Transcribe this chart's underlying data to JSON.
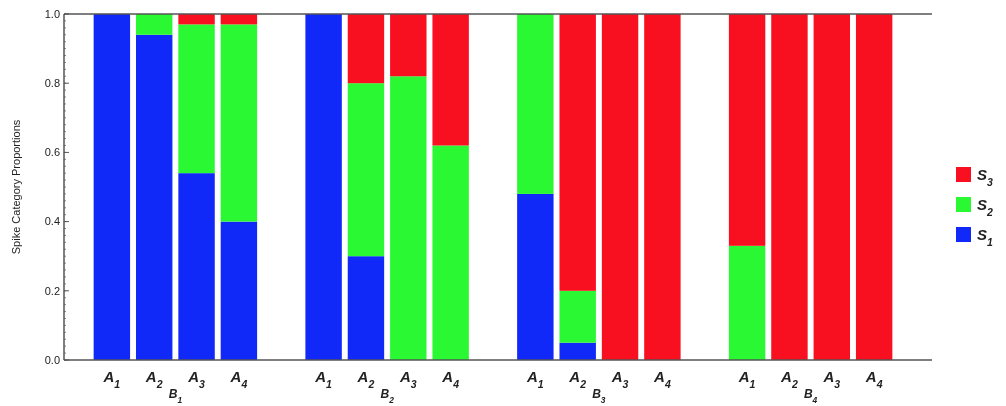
{
  "chart_data": {
    "type": "bar",
    "stacked": true,
    "ylabel": "Spike Category Proportions",
    "categories": [
      "A$_{1}$",
      "A$_{2}$",
      "A$_{3}$",
      "A$_{4}$",
      null,
      "A$_{1}$",
      "A$_{2}$",
      "A$_{3}$",
      "A$_{4}$",
      null,
      "A$_{1}$",
      "A$_{2}$",
      "A$_{3}$",
      "A$_{4}$",
      null,
      "A$_{1}$",
      "A$_{2}$",
      "A$_{3}$",
      "A$_{4}$"
    ],
    "series": [
      {
        "name": "S$_{1}$",
        "color": "#1028f8",
        "values": [
          1,
          0.94,
          0.54,
          0.4,
          null,
          1,
          0.3,
          0,
          0,
          null,
          0.48,
          0.05,
          0,
          0,
          null,
          0,
          0,
          0,
          0
        ]
      },
      {
        "name": "S$_{2}$",
        "color": "#2af832",
        "values": [
          0,
          0.06,
          0.43,
          0.57,
          null,
          0,
          0.5,
          0.82,
          0.62,
          null,
          0.52,
          0.15,
          0,
          0,
          null,
          0.33,
          0,
          0,
          0
        ]
      },
      {
        "name": "S$_{3}$",
        "color": "#f81020",
        "values": [
          0,
          0,
          0.03,
          0.03,
          null,
          0,
          0.2,
          0.18,
          0.38,
          null,
          0,
          0.8,
          1,
          1,
          null,
          0.67,
          1,
          1,
          1
        ]
      }
    ],
    "ylim": [
      0,
      1
    ],
    "yticks": [
      {
        "value": 0,
        "label": "0.0"
      },
      {
        "value": 0.2,
        "label": "0.2"
      },
      {
        "value": 0.4,
        "label": "0.4"
      },
      {
        "value": 0.6,
        "label": "0.6"
      },
      {
        "value": 0.8,
        "label": "0.8"
      },
      {
        "value": 1,
        "label": "1.0"
      }
    ],
    "annotations": [
      "B$_{1}$",
      "B$_{2}$",
      "B$_{3}$",
      "B$_{4}$"
    ],
    "legend": "right",
    "grid": false
  }
}
